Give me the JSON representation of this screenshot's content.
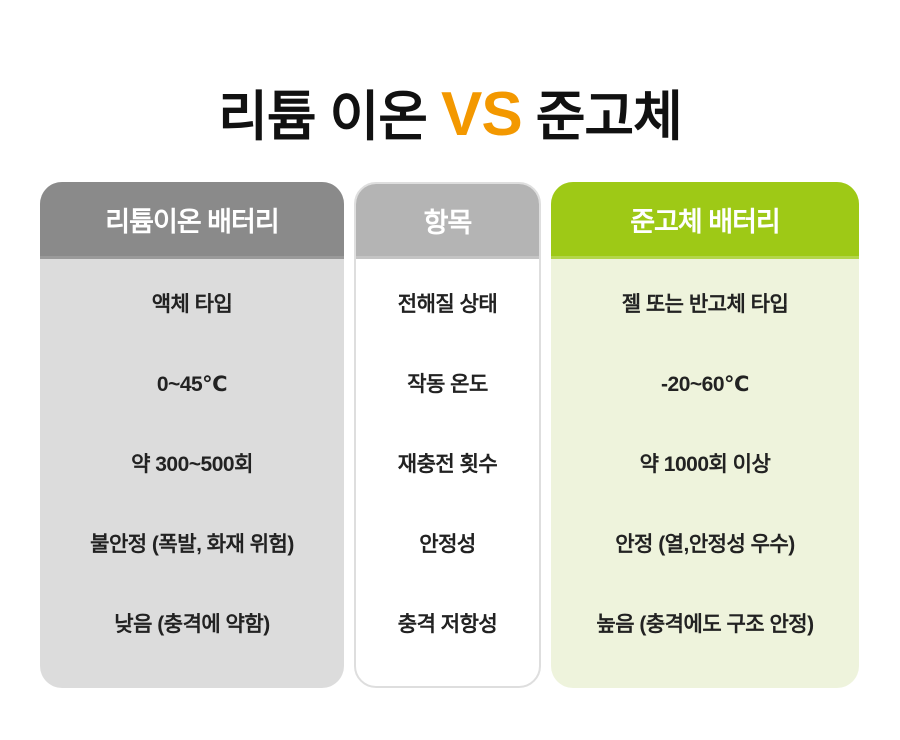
{
  "title": {
    "left": "리튬 이온",
    "vs": "VS",
    "right": "준고체"
  },
  "colors": {
    "accent_vs": "#f39800",
    "lithium_header": "#8a8a8a",
    "item_header": "#b4b4b4",
    "solid_header": "#9ec916",
    "lithium_body": "#dcdcdc",
    "solid_body": "#eef3dc"
  },
  "columns": [
    {
      "header": "리튬이온 배터리",
      "rows": [
        "액체 타입",
        "0~45℃",
        "약 300~500회",
        "불안정 (폭발, 화재 위험)",
        "낮음 (충격에 약함)"
      ]
    },
    {
      "header": "항목",
      "rows": [
        "전해질 상태",
        "작동 온도",
        "재충전 횟수",
        "안정성",
        "충격 저항성"
      ]
    },
    {
      "header": "준고체 배터리",
      "rows": [
        "젤 또는 반고체 타입",
        "-20~60℃",
        "약 1000회 이상",
        "안정 (열,안정성 우수)",
        "높음 (충격에도 구조 안정)"
      ]
    }
  ]
}
